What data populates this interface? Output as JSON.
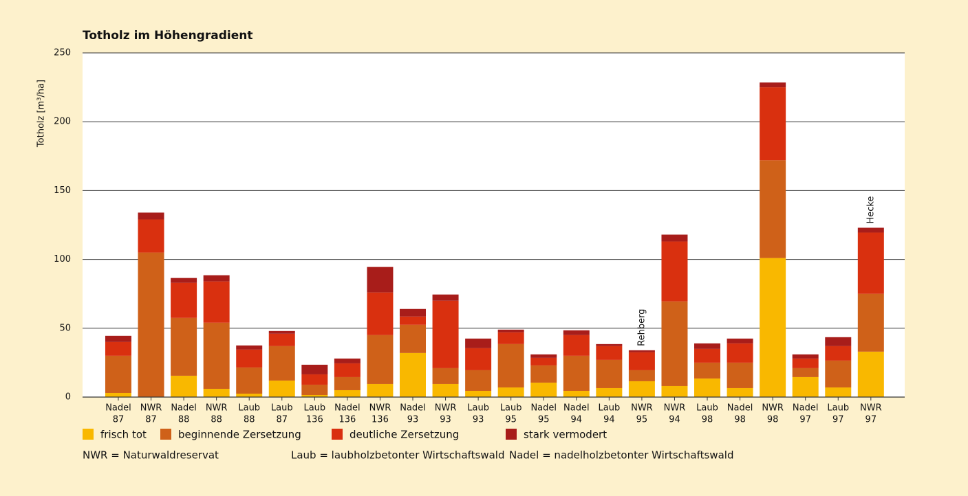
{
  "chart_data": {
    "type": "stacked_bar",
    "title": "Totholz im Höhengradient",
    "y_label": "Totholz [m³/ha]",
    "categories": [
      [
        "Nadel",
        "87"
      ],
      [
        "NWR",
        "87"
      ],
      [
        "Nadel",
        "88"
      ],
      [
        "NWR",
        "88"
      ],
      [
        "Laub",
        "88"
      ],
      [
        "Laub",
        "87"
      ],
      [
        "Laub",
        "136"
      ],
      [
        "Nadel",
        "136"
      ],
      [
        "NWR",
        "136"
      ],
      [
        "Nadel",
        "93"
      ],
      [
        "NWR",
        "93"
      ],
      [
        "Laub",
        "93"
      ],
      [
        "Laub",
        "95"
      ],
      [
        "Nadel",
        "95"
      ],
      [
        "Nadel",
        "94"
      ],
      [
        "Laub",
        "94"
      ],
      [
        "NWR",
        "95"
      ],
      [
        "NWR",
        "94"
      ],
      [
        "Laub",
        "98"
      ],
      [
        "Nadel",
        "98"
      ],
      [
        "NWR",
        "98"
      ],
      [
        "Nadel",
        "97"
      ],
      [
        "Laub",
        "97"
      ],
      [
        "NWR",
        "97"
      ]
    ],
    "series": [
      {
        "name": "frisch tot",
        "color": "#f9b800",
        "values": [
          3,
          0,
          15.5,
          6,
          2.5,
          12,
          1.5,
          5,
          9.5,
          32,
          9.5,
          4.5,
          7,
          10.5,
          4.5,
          6.5,
          11.5,
          8,
          13.5,
          6.5,
          101,
          14.5,
          7,
          33
        ]
      },
      {
        "name": "beginnende Zersetzung",
        "color": "#cf6119",
        "values": [
          27,
          105,
          42,
          48,
          19,
          25,
          7.5,
          9.5,
          35.5,
          20.5,
          11.5,
          15,
          31.5,
          12.5,
          25.5,
          20.5,
          8,
          61.5,
          11.5,
          18.5,
          71,
          6.5,
          19.5,
          42
        ]
      },
      {
        "name": "deutliche Zersetzung",
        "color": "#d9300f",
        "values": [
          10,
          24,
          25.5,
          30,
          13,
          9,
          7.5,
          10,
          31,
          6,
          49,
          16,
          8.5,
          5.5,
          15,
          10,
          13,
          43.5,
          10,
          14,
          53,
          7,
          10.5,
          44.5
        ]
      },
      {
        "name": "stark vermodert",
        "color": "#a81d1a",
        "values": [
          4.5,
          5,
          3.5,
          4.5,
          3,
          2,
          7,
          3.5,
          18.5,
          5.5,
          4.5,
          7,
          2,
          2.5,
          3.5,
          1.5,
          1.5,
          5,
          4,
          3.5,
          3.5,
          3,
          6.5,
          3.5
        ]
      }
    ],
    "annotations": [
      {
        "text": "Rehberg",
        "category": "NWR 95"
      },
      {
        "text": "Hecke",
        "category": "NWR 97"
      }
    ],
    "notes": [
      "NWR = Naturwaldreservat",
      "Laub = laubholzbetonter Wirtschaftswald",
      "Nadel = nadelholzbetonter Wirtschaftswald"
    ],
    "ylim": [
      0,
      250
    ],
    "yticks": [
      0,
      50,
      100,
      150,
      200,
      250
    ],
    "grid": true
  }
}
